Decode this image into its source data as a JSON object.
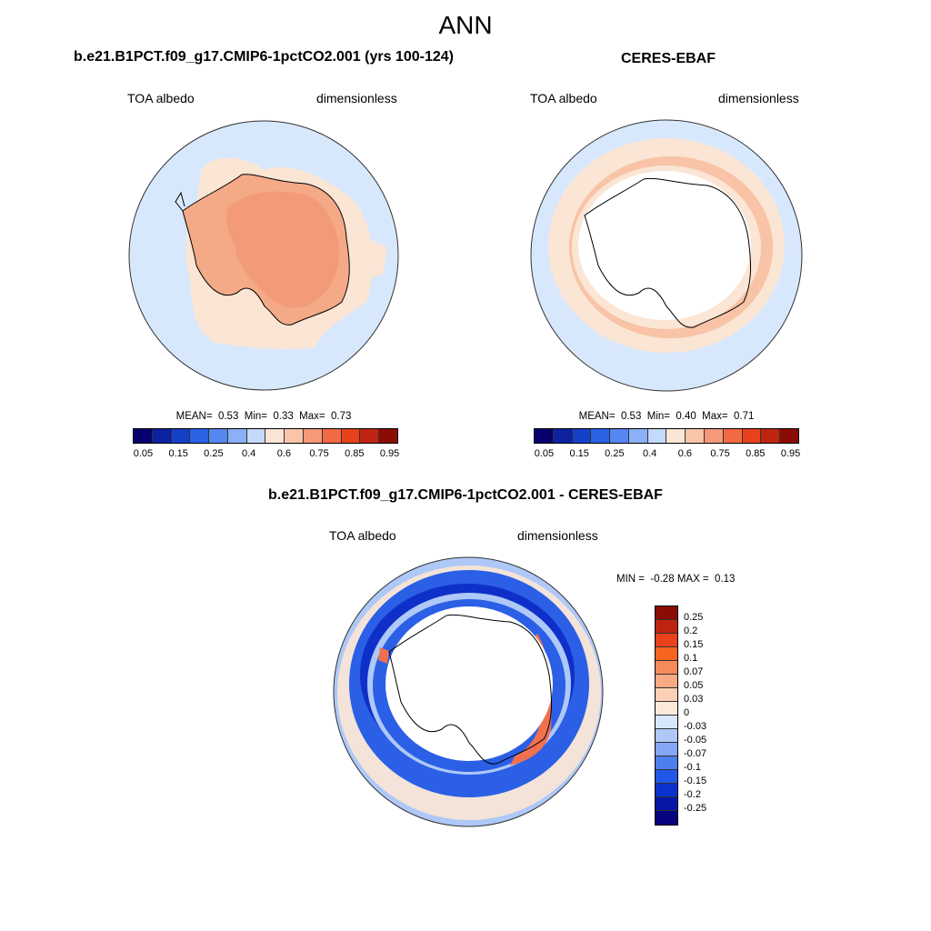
{
  "figure": {
    "title": "ANN"
  },
  "panel_model": {
    "title": "b.e21.B1PCT.f09_g17.CMIP6-1pctCO2.001 (yrs 100-124)",
    "variable": "TOA albedo",
    "units": "dimensionless",
    "stats": {
      "mean_label": "MEAN=",
      "mean": "0.53",
      "min_label": "Min=",
      "min": "0.33",
      "max_label": "Max=",
      "max": "0.73"
    }
  },
  "panel_obs": {
    "title": "CERES-EBAF",
    "variable": "TOA albedo",
    "units": "dimensionless",
    "stats": {
      "mean_label": "MEAN=",
      "mean": "0.53",
      "min_label": "Min=",
      "min": "0.40",
      "max_label": "Max=",
      "max": "0.71"
    }
  },
  "panel_diff": {
    "title": "b.e21.B1PCT.f09_g17.CMIP6-1pctCO2.001 - CERES-EBAF",
    "variable": "TOA albedo",
    "units": "dimensionless",
    "stats": {
      "min_label": "MIN =",
      "min": "-0.28",
      "max_label": "MAX =",
      "max": "0.13"
    }
  },
  "colorbar_main": {
    "colors": [
      "#08006e",
      "#0c22a0",
      "#1441c8",
      "#2a62e6",
      "#5487f0",
      "#8cb0f7",
      "#c5d9fa",
      "#fbe5d4",
      "#fac4a8",
      "#f6987a",
      "#f26a43",
      "#e8421d",
      "#bf2410",
      "#8b0c05"
    ],
    "tick_labels": [
      "0.05",
      "0.15",
      "0.25",
      "0.4",
      "0.6",
      "0.75",
      "0.85",
      "0.95"
    ]
  },
  "colorbar_diff": {
    "colors": [
      "#8b0c05",
      "#bf2410",
      "#e8421d",
      "#f6651f",
      "#f68a5a",
      "#f8aa85",
      "#fbd0b5",
      "#fbeadc",
      "#d8e8fc",
      "#aec8f7",
      "#85a6f3",
      "#4f7eee",
      "#2256e6",
      "#0b32cf",
      "#0617a5",
      "#06037c"
    ],
    "labels": [
      "0.25",
      "0.2",
      "0.15",
      "0.1",
      "0.07",
      "0.05",
      "0.03",
      "0",
      "-0.03",
      "-0.05",
      "-0.07",
      "-0.1",
      "-0.15",
      "-0.2",
      "-0.25"
    ]
  },
  "colors": {
    "ocean_light_blue": "#d8e8fc",
    "land_model": "#f4a987",
    "land_model_inner": "#f39a78",
    "cream": "#fbe5d4",
    "peach": "#f8c3a6",
    "diff_blue": "#2a5fe6",
    "diff_dark_blue": "#0e30c8",
    "diff_light_blue": "#aec8f7",
    "diff_red": "#f07050"
  }
}
